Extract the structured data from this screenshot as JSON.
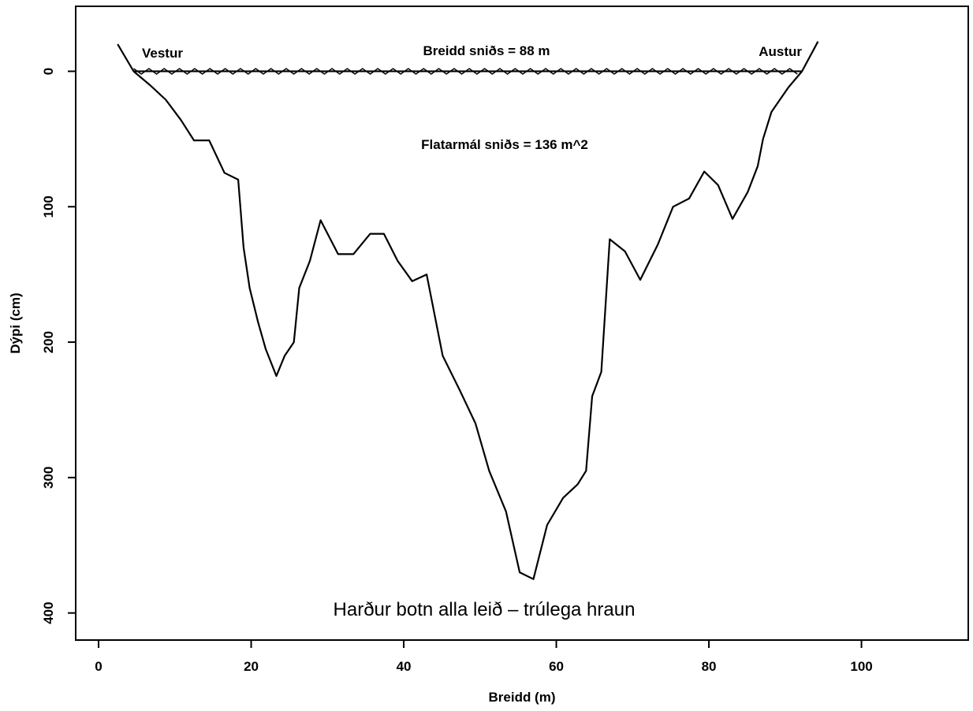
{
  "chart_data": {
    "type": "line",
    "title": "",
    "xlabel": "Breidd (m)",
    "ylabel": "Dýpi (cm)",
    "xlim": [
      -3,
      114
    ],
    "ylim": [
      420,
      -48
    ],
    "y_reversed": true,
    "xticks": [
      0,
      20,
      40,
      60,
      80,
      100
    ],
    "yticks": [
      0,
      100,
      200,
      300,
      400
    ],
    "grid": false,
    "series": [
      {
        "role": "cross-section profile",
        "x": [
          2.5,
          4.6,
          6.7,
          8.8,
          10.8,
          12.5,
          14.5,
          16.5,
          18.3,
          19.0,
          19.8,
          20.9,
          21.9,
          23.3,
          24.4,
          25.6,
          26.3,
          27.7,
          29.1,
          31.4,
          33.4,
          35.6,
          37.4,
          39.2,
          41.1,
          43.0,
          45.1,
          47.3,
          49.4,
          51.2,
          53.4,
          55.2,
          57.0,
          58.8,
          60.9,
          62.8,
          63.9,
          64.7,
          65.9,
          67.0,
          69.0,
          71.0,
          73.3,
          75.3,
          77.4,
          79.4,
          81.2,
          83.1,
          85.1,
          86.4,
          87.1,
          88.2,
          90.4,
          92.2,
          94.3
        ],
        "y": [
          -20,
          0,
          10,
          21,
          36,
          51,
          51,
          75,
          80,
          130,
          160,
          185,
          205,
          225,
          210,
          200,
          160,
          140,
          110,
          135,
          135,
          120,
          120,
          140,
          155,
          150,
          210,
          235,
          260,
          295,
          325,
          370,
          375,
          335,
          315,
          305,
          295,
          240,
          222,
          124,
          133,
          154,
          128,
          100,
          94,
          74,
          84,
          109,
          89,
          70,
          50,
          30,
          12,
          0,
          -22
        ]
      }
    ],
    "water_surface": {
      "x_start": 4.6,
      "x_end": 92.2,
      "level": 0,
      "marker_step": 2
    },
    "annotations": {
      "west": "Vestur",
      "east": "Austur",
      "width": "Breidd sniðs = 88 m",
      "area": "Flatarmál sniðs = 136 m^2",
      "bottom": "Harður botn alla leið – trúlega hraun"
    }
  }
}
